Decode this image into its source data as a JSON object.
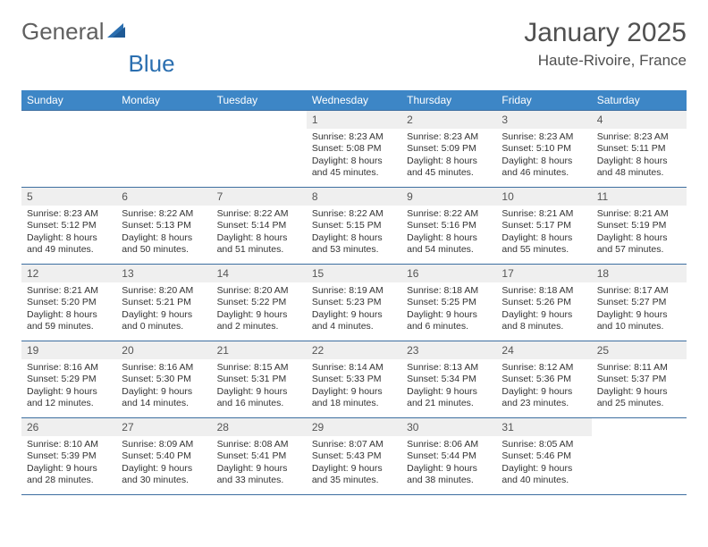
{
  "logo": {
    "text1": "General",
    "text2": "Blue"
  },
  "title": "January 2025",
  "location": "Haute-Rivoire, France",
  "colors": {
    "header_bg": "#3d86c6",
    "header_text": "#ffffff",
    "daynum_bg": "#efefef",
    "border": "#3d6ea0",
    "logo_accent": "#2b6fb0"
  },
  "day_headers": [
    "Sunday",
    "Monday",
    "Tuesday",
    "Wednesday",
    "Thursday",
    "Friday",
    "Saturday"
  ],
  "weeks": [
    [
      null,
      null,
      null,
      {
        "n": "1",
        "sr": "8:23 AM",
        "ss": "5:08 PM",
        "dl": "8 hours and 45 minutes."
      },
      {
        "n": "2",
        "sr": "8:23 AM",
        "ss": "5:09 PM",
        "dl": "8 hours and 45 minutes."
      },
      {
        "n": "3",
        "sr": "8:23 AM",
        "ss": "5:10 PM",
        "dl": "8 hours and 46 minutes."
      },
      {
        "n": "4",
        "sr": "8:23 AM",
        "ss": "5:11 PM",
        "dl": "8 hours and 48 minutes."
      }
    ],
    [
      {
        "n": "5",
        "sr": "8:23 AM",
        "ss": "5:12 PM",
        "dl": "8 hours and 49 minutes."
      },
      {
        "n": "6",
        "sr": "8:22 AM",
        "ss": "5:13 PM",
        "dl": "8 hours and 50 minutes."
      },
      {
        "n": "7",
        "sr": "8:22 AM",
        "ss": "5:14 PM",
        "dl": "8 hours and 51 minutes."
      },
      {
        "n": "8",
        "sr": "8:22 AM",
        "ss": "5:15 PM",
        "dl": "8 hours and 53 minutes."
      },
      {
        "n": "9",
        "sr": "8:22 AM",
        "ss": "5:16 PM",
        "dl": "8 hours and 54 minutes."
      },
      {
        "n": "10",
        "sr": "8:21 AM",
        "ss": "5:17 PM",
        "dl": "8 hours and 55 minutes."
      },
      {
        "n": "11",
        "sr": "8:21 AM",
        "ss": "5:19 PM",
        "dl": "8 hours and 57 minutes."
      }
    ],
    [
      {
        "n": "12",
        "sr": "8:21 AM",
        "ss": "5:20 PM",
        "dl": "8 hours and 59 minutes."
      },
      {
        "n": "13",
        "sr": "8:20 AM",
        "ss": "5:21 PM",
        "dl": "9 hours and 0 minutes."
      },
      {
        "n": "14",
        "sr": "8:20 AM",
        "ss": "5:22 PM",
        "dl": "9 hours and 2 minutes."
      },
      {
        "n": "15",
        "sr": "8:19 AM",
        "ss": "5:23 PM",
        "dl": "9 hours and 4 minutes."
      },
      {
        "n": "16",
        "sr": "8:18 AM",
        "ss": "5:25 PM",
        "dl": "9 hours and 6 minutes."
      },
      {
        "n": "17",
        "sr": "8:18 AM",
        "ss": "5:26 PM",
        "dl": "9 hours and 8 minutes."
      },
      {
        "n": "18",
        "sr": "8:17 AM",
        "ss": "5:27 PM",
        "dl": "9 hours and 10 minutes."
      }
    ],
    [
      {
        "n": "19",
        "sr": "8:16 AM",
        "ss": "5:29 PM",
        "dl": "9 hours and 12 minutes."
      },
      {
        "n": "20",
        "sr": "8:16 AM",
        "ss": "5:30 PM",
        "dl": "9 hours and 14 minutes."
      },
      {
        "n": "21",
        "sr": "8:15 AM",
        "ss": "5:31 PM",
        "dl": "9 hours and 16 minutes."
      },
      {
        "n": "22",
        "sr": "8:14 AM",
        "ss": "5:33 PM",
        "dl": "9 hours and 18 minutes."
      },
      {
        "n": "23",
        "sr": "8:13 AM",
        "ss": "5:34 PM",
        "dl": "9 hours and 21 minutes."
      },
      {
        "n": "24",
        "sr": "8:12 AM",
        "ss": "5:36 PM",
        "dl": "9 hours and 23 minutes."
      },
      {
        "n": "25",
        "sr": "8:11 AM",
        "ss": "5:37 PM",
        "dl": "9 hours and 25 minutes."
      }
    ],
    [
      {
        "n": "26",
        "sr": "8:10 AM",
        "ss": "5:39 PM",
        "dl": "9 hours and 28 minutes."
      },
      {
        "n": "27",
        "sr": "8:09 AM",
        "ss": "5:40 PM",
        "dl": "9 hours and 30 minutes."
      },
      {
        "n": "28",
        "sr": "8:08 AM",
        "ss": "5:41 PM",
        "dl": "9 hours and 33 minutes."
      },
      {
        "n": "29",
        "sr": "8:07 AM",
        "ss": "5:43 PM",
        "dl": "9 hours and 35 minutes."
      },
      {
        "n": "30",
        "sr": "8:06 AM",
        "ss": "5:44 PM",
        "dl": "9 hours and 38 minutes."
      },
      {
        "n": "31",
        "sr": "8:05 AM",
        "ss": "5:46 PM",
        "dl": "9 hours and 40 minutes."
      },
      null
    ]
  ],
  "labels": {
    "sunrise": "Sunrise:",
    "sunset": "Sunset:",
    "daylight": "Daylight:"
  }
}
